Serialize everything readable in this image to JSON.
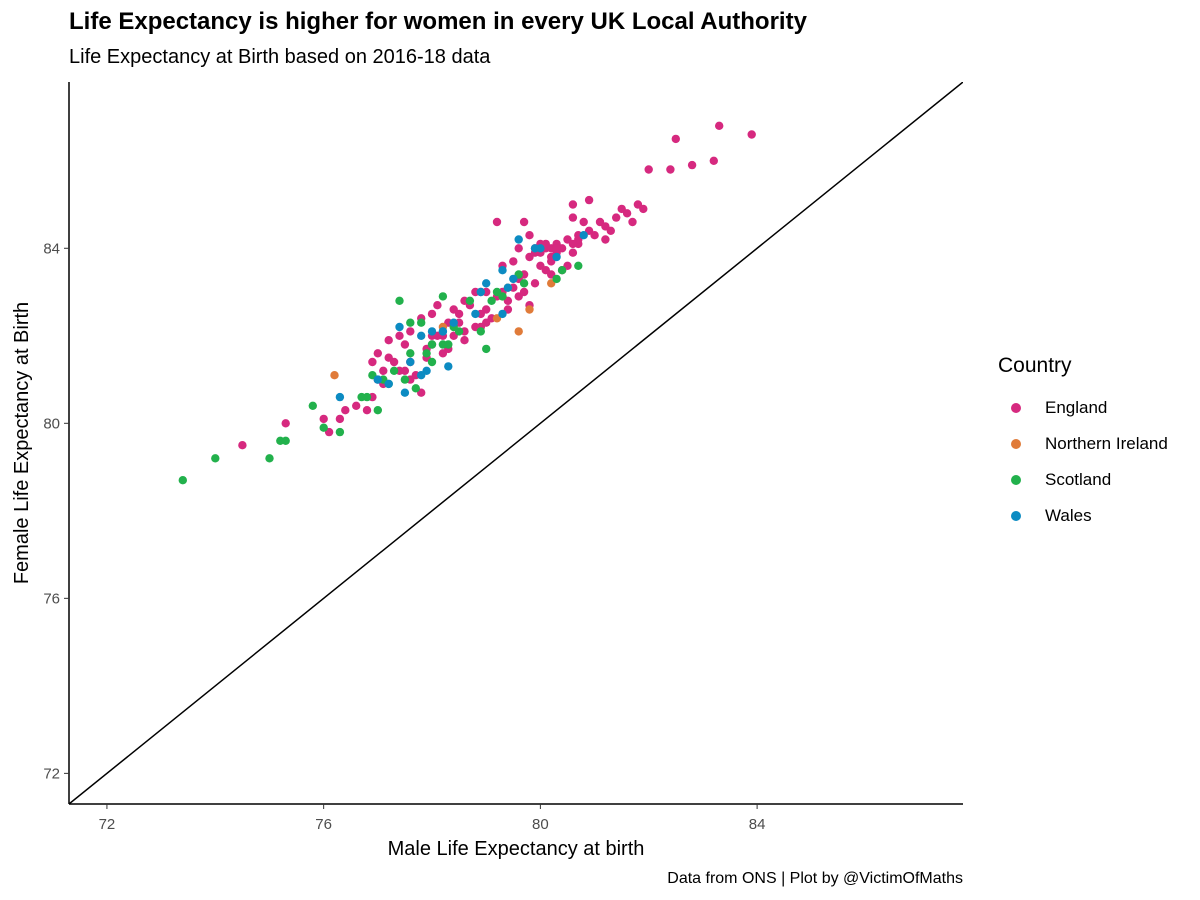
{
  "chart_data": {
    "type": "scatter",
    "title": "Life Expectancy is higher for women in every UK Local Authority",
    "subtitle": "Life Expectancy at Birth based on 2016-18 data",
    "caption": "Data from ONS | Plot by @VictimOfMaths",
    "xlabel": "Male Life Expectancy at birth",
    "ylabel": "Female Life Expectancy at Birth",
    "xlim": [
      71.3,
      87.8
    ],
    "ylim": [
      71.3,
      87.8
    ],
    "xticks": [
      72,
      76,
      80,
      84
    ],
    "yticks": [
      72,
      76,
      80,
      84
    ],
    "xtick_labels": [
      "72",
      "76",
      "80",
      "84"
    ],
    "ytick_labels": [
      "72",
      "76",
      "80",
      "84"
    ],
    "grid": false,
    "reference_line": "y = x",
    "legend": {
      "title": "Country",
      "position": "right"
    },
    "series": [
      {
        "name": "England",
        "color": "#d6297f",
        "points": [
          [
            74.5,
            79.5
          ],
          [
            75.3,
            80.0
          ],
          [
            76.0,
            80.1
          ],
          [
            76.1,
            79.8
          ],
          [
            76.3,
            80.1
          ],
          [
            76.4,
            80.3
          ],
          [
            76.6,
            80.4
          ],
          [
            76.8,
            80.3
          ],
          [
            76.9,
            81.4
          ],
          [
            77.0,
            81.6
          ],
          [
            77.1,
            81.2
          ],
          [
            77.2,
            81.9
          ],
          [
            77.3,
            81.4
          ],
          [
            77.4,
            82.0
          ],
          [
            77.5,
            81.2
          ],
          [
            77.6,
            81.4
          ],
          [
            77.7,
            81.1
          ],
          [
            77.6,
            82.1
          ],
          [
            77.9,
            81.7
          ],
          [
            78.0,
            81.8
          ],
          [
            78.1,
            82.0
          ],
          [
            78.0,
            82.5
          ],
          [
            78.2,
            82.0
          ],
          [
            78.3,
            82.3
          ],
          [
            78.2,
            81.6
          ],
          [
            78.4,
            82.6
          ],
          [
            78.5,
            82.3
          ],
          [
            78.6,
            82.1
          ],
          [
            78.7,
            82.7
          ],
          [
            78.6,
            81.9
          ],
          [
            78.8,
            82.2
          ],
          [
            78.9,
            82.5
          ],
          [
            79.0,
            82.6
          ],
          [
            78.9,
            83.0
          ],
          [
            79.1,
            82.4
          ],
          [
            79.2,
            82.9
          ],
          [
            79.3,
            83.0
          ],
          [
            79.4,
            82.6
          ],
          [
            79.5,
            83.1
          ],
          [
            79.6,
            82.9
          ],
          [
            79.3,
            83.6
          ],
          [
            79.5,
            83.7
          ],
          [
            79.6,
            84.0
          ],
          [
            79.7,
            83.4
          ],
          [
            79.8,
            83.8
          ],
          [
            79.9,
            83.2
          ],
          [
            80.0,
            83.6
          ],
          [
            80.1,
            84.0
          ],
          [
            80.2,
            83.7
          ],
          [
            80.3,
            84.1
          ],
          [
            80.0,
            84.1
          ],
          [
            80.1,
            83.5
          ],
          [
            80.2,
            84.0
          ],
          [
            80.3,
            83.9
          ],
          [
            80.4,
            84.0
          ],
          [
            80.5,
            84.2
          ],
          [
            80.6,
            83.9
          ],
          [
            80.7,
            84.3
          ],
          [
            80.6,
            84.7
          ],
          [
            80.8,
            84.6
          ],
          [
            80.7,
            84.1
          ],
          [
            80.9,
            84.4
          ],
          [
            81.0,
            84.3
          ],
          [
            81.1,
            84.6
          ],
          [
            81.2,
            84.2
          ],
          [
            81.3,
            84.4
          ],
          [
            81.4,
            84.7
          ],
          [
            81.5,
            84.9
          ],
          [
            81.6,
            84.8
          ],
          [
            81.7,
            84.6
          ],
          [
            81.8,
            85.0
          ],
          [
            81.9,
            84.9
          ],
          [
            82.0,
            85.8
          ],
          [
            82.4,
            85.8
          ],
          [
            82.5,
            86.5
          ],
          [
            82.8,
            85.9
          ],
          [
            83.2,
            86.0
          ],
          [
            83.3,
            86.8
          ],
          [
            83.9,
            86.6
          ],
          [
            80.9,
            85.1
          ],
          [
            80.6,
            85.0
          ],
          [
            79.7,
            84.6
          ],
          [
            79.2,
            84.6
          ],
          [
            80.4,
            83.5
          ],
          [
            80.5,
            83.6
          ],
          [
            79.8,
            84.3
          ],
          [
            79.9,
            84.0
          ],
          [
            80.0,
            83.9
          ],
          [
            80.1,
            84.1
          ],
          [
            80.2,
            83.8
          ],
          [
            79.0,
            82.3
          ],
          [
            78.5,
            82.5
          ],
          [
            78.0,
            82.0
          ],
          [
            77.8,
            82.4
          ],
          [
            77.5,
            81.8
          ],
          [
            77.2,
            81.5
          ],
          [
            77.0,
            81.0
          ],
          [
            76.9,
            80.6
          ],
          [
            77.1,
            80.9
          ],
          [
            77.6,
            81.0
          ],
          [
            78.3,
            81.7
          ],
          [
            78.6,
            82.8
          ],
          [
            79.0,
            83.0
          ],
          [
            79.4,
            82.8
          ],
          [
            79.7,
            83.0
          ],
          [
            79.8,
            82.7
          ],
          [
            80.2,
            83.4
          ],
          [
            79.9,
            83.9
          ],
          [
            80.7,
            84.2
          ],
          [
            81.2,
            84.5
          ],
          [
            80.6,
            84.1
          ],
          [
            79.6,
            83.3
          ],
          [
            78.9,
            82.2
          ],
          [
            78.8,
            83.0
          ],
          [
            78.4,
            82.0
          ],
          [
            77.9,
            81.5
          ],
          [
            77.4,
            81.2
          ],
          [
            77.8,
            80.7
          ],
          [
            78.1,
            82.7
          ],
          [
            80.3,
            84.0
          ]
        ]
      },
      {
        "name": "Northern Ireland",
        "color": "#e07b39",
        "points": [
          [
            76.2,
            81.1
          ],
          [
            78.2,
            82.2
          ],
          [
            79.3,
            82.9
          ],
          [
            79.4,
            83.1
          ],
          [
            79.6,
            82.1
          ],
          [
            79.8,
            82.6
          ],
          [
            79.2,
            82.4
          ],
          [
            80.2,
            83.2
          ]
        ]
      },
      {
        "name": "Scotland",
        "color": "#22b14c",
        "points": [
          [
            73.4,
            78.7
          ],
          [
            74.0,
            79.2
          ],
          [
            75.0,
            79.2
          ],
          [
            75.2,
            79.6
          ],
          [
            75.3,
            79.6
          ],
          [
            75.8,
            80.4
          ],
          [
            76.0,
            79.9
          ],
          [
            76.3,
            79.8
          ],
          [
            76.7,
            80.6
          ],
          [
            76.8,
            80.6
          ],
          [
            77.0,
            80.3
          ],
          [
            76.9,
            81.1
          ],
          [
            77.1,
            81.0
          ],
          [
            77.3,
            81.2
          ],
          [
            77.5,
            81.0
          ],
          [
            77.2,
            80.9
          ],
          [
            77.7,
            80.8
          ],
          [
            77.4,
            82.8
          ],
          [
            77.6,
            81.6
          ],
          [
            77.9,
            81.6
          ],
          [
            77.8,
            82.3
          ],
          [
            78.0,
            81.4
          ],
          [
            78.2,
            81.8
          ],
          [
            78.3,
            81.8
          ],
          [
            78.2,
            82.9
          ],
          [
            78.5,
            82.1
          ],
          [
            78.7,
            82.8
          ],
          [
            78.9,
            82.1
          ],
          [
            79.0,
            81.7
          ],
          [
            79.1,
            82.8
          ],
          [
            79.2,
            83.0
          ],
          [
            79.3,
            82.9
          ],
          [
            79.6,
            83.4
          ],
          [
            80.3,
            83.3
          ],
          [
            80.7,
            83.6
          ],
          [
            80.4,
            83.5
          ],
          [
            79.7,
            83.2
          ],
          [
            78.0,
            81.8
          ],
          [
            77.6,
            82.3
          ],
          [
            78.4,
            82.2
          ]
        ]
      },
      {
        "name": "Wales",
        "color": "#0c8bc2",
        "points": [
          [
            76.3,
            80.6
          ],
          [
            77.0,
            81.0
          ],
          [
            77.2,
            80.9
          ],
          [
            77.4,
            82.2
          ],
          [
            77.5,
            80.7
          ],
          [
            77.6,
            81.4
          ],
          [
            77.8,
            82.0
          ],
          [
            77.9,
            81.2
          ],
          [
            77.8,
            81.1
          ],
          [
            78.0,
            82.1
          ],
          [
            78.2,
            82.1
          ],
          [
            78.3,
            81.3
          ],
          [
            78.4,
            82.3
          ],
          [
            78.8,
            82.5
          ],
          [
            78.9,
            83.0
          ],
          [
            79.0,
            83.2
          ],
          [
            79.3,
            83.5
          ],
          [
            79.5,
            83.3
          ],
          [
            79.3,
            82.5
          ],
          [
            79.6,
            84.2
          ],
          [
            79.9,
            84.0
          ],
          [
            80.0,
            84.0
          ],
          [
            80.3,
            83.8
          ],
          [
            80.8,
            84.3
          ],
          [
            79.4,
            83.1
          ],
          [
            78.2,
            82.1
          ]
        ]
      }
    ]
  }
}
